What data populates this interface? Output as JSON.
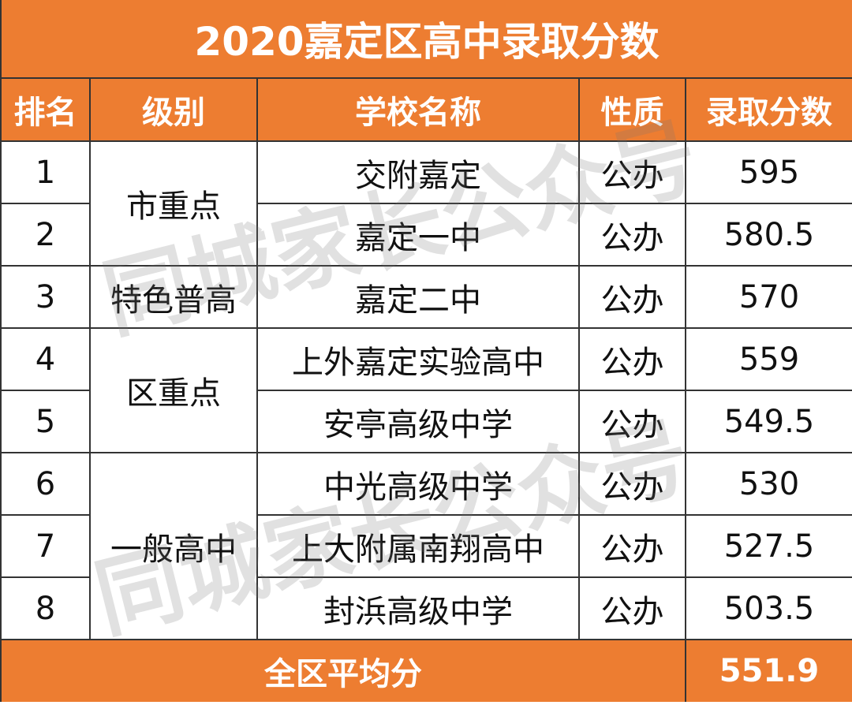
{
  "title": "2020嘉定区高中录取分数",
  "headers": [
    "排名",
    "级别",
    "学校名称",
    "性质",
    "录取分数"
  ],
  "rows": [
    {
      "rank": "1",
      "school": "交附嘉定",
      "type": "公办",
      "score": "595"
    },
    {
      "rank": "2",
      "school": "嘉定一中",
      "type": "公办",
      "score": "580.5"
    },
    {
      "rank": "3",
      "school": "嘉定二中",
      "type": "公办",
      "score": "570"
    },
    {
      "rank": "4",
      "school": "上外嘉定实验高中",
      "type": "公办",
      "score": "559"
    },
    {
      "rank": "5",
      "school": "安亭高级中学",
      "type": "公办",
      "score": "549.5"
    },
    {
      "rank": "6",
      "school": "中光高级中学",
      "type": "公办",
      "score": "530"
    },
    {
      "rank": "7",
      "school": "上大附属南翔高中",
      "type": "公办",
      "score": "527.5"
    },
    {
      "rank": "8",
      "school": "封浜高级中学",
      "type": "公办",
      "score": "503.5"
    }
  ],
  "levels": [
    "市重点",
    "特色普高",
    "区重点",
    "一般高中"
  ],
  "footer": {
    "label": "全区平均分",
    "value": "551.9"
  },
  "watermark": "同城家长公众号",
  "colors": {
    "accent": "#ED7D31"
  }
}
